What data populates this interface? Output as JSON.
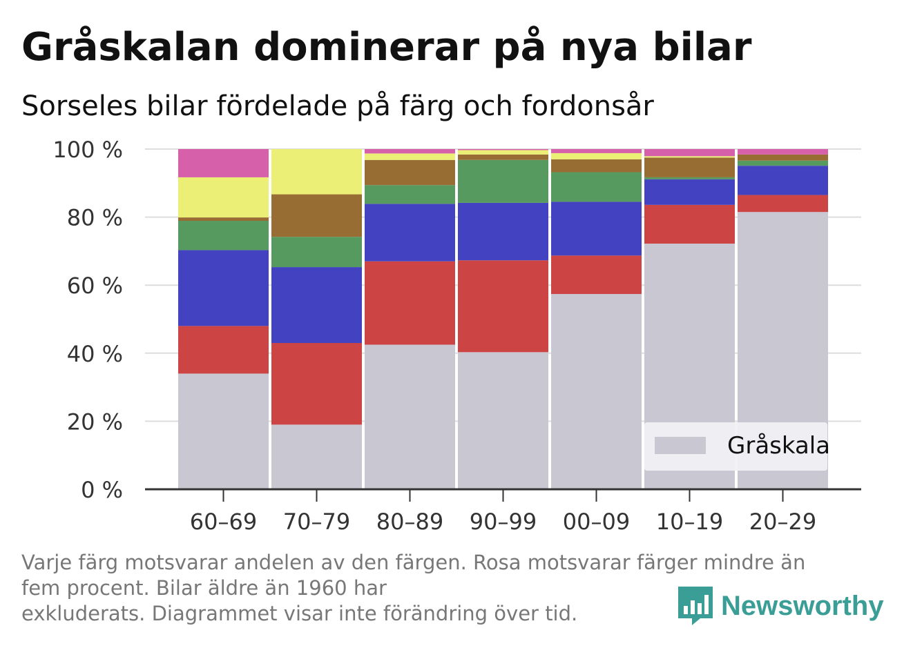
{
  "title": "Gråskalan dominerar på nya bilar",
  "subtitle": "Sorseles bilar fördelade på färg och fordonsår",
  "note": {
    "line1": "Varje färg motsvarar andelen av den färgen. Rosa motsvarar färger mindre än",
    "line2": "fem procent. Bilar äldre än 1960 har",
    "line3": "exkluderats. Diagrammet visar inte förändring över tid."
  },
  "brand": {
    "name": "Newsworthy",
    "color": "#3a9e96"
  },
  "chart_data": {
    "type": "bar",
    "stacked": true,
    "categories": [
      "60–69",
      "70–79",
      "80–89",
      "90–99",
      "00–09",
      "10–19",
      "20–29"
    ],
    "series": [
      {
        "name": "Gråskala",
        "color": "#c8c7d2",
        "values": [
          34,
          19,
          42.5,
          40.3,
          57.4,
          72.2,
          81.5
        ]
      },
      {
        "color": "#cc4444",
        "values": [
          14,
          24,
          24.5,
          27,
          11.3,
          11.4,
          5
        ]
      },
      {
        "color": "#4343c1",
        "values": [
          22.3,
          22.3,
          16.9,
          16.9,
          15.8,
          7.5,
          8.6
        ]
      },
      {
        "color": "#579a60",
        "values": [
          8.6,
          8.9,
          5.5,
          12.6,
          8.7,
          0.6,
          1.5
        ]
      },
      {
        "color": "#986d34",
        "values": [
          1,
          12.5,
          7.4,
          1.6,
          3.8,
          5.8,
          1.8
        ]
      },
      {
        "color": "#ecef75",
        "values": [
          11.8,
          13.3,
          1.9,
          1.3,
          1.8,
          0.4,
          0
        ]
      },
      {
        "color": "#d660a9",
        "values": [
          8.3,
          0,
          1.3,
          0.3,
          1.2,
          2.1,
          1.6
        ]
      }
    ],
    "y_ticks": [
      "0 %",
      "20 %",
      "40 %",
      "60 %",
      "80 %",
      "100 %"
    ],
    "ylim": [
      0,
      100
    ],
    "grid": true,
    "legend_position": "bottom-right",
    "legend_label": "Gråskala"
  }
}
